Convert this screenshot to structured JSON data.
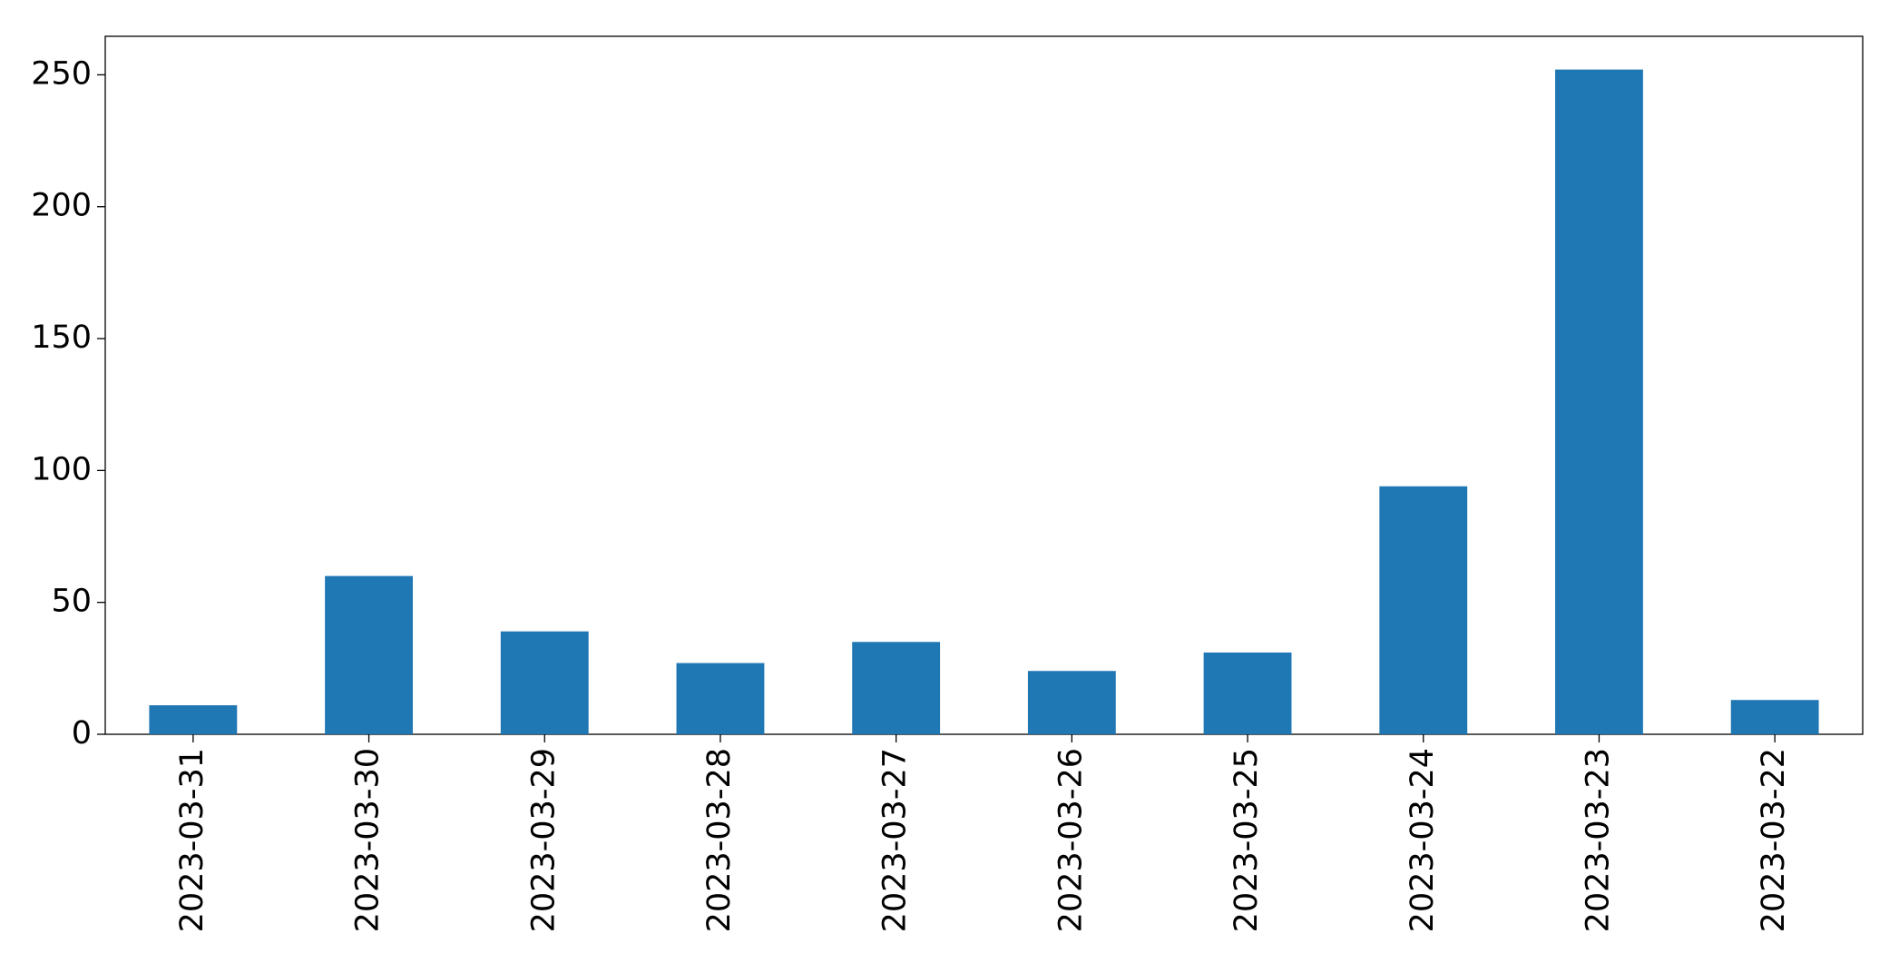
{
  "chart_data": {
    "type": "bar",
    "categories": [
      "2023-03-31",
      "2023-03-30",
      "2023-03-29",
      "2023-03-28",
      "2023-03-27",
      "2023-03-26",
      "2023-03-25",
      "2023-03-24",
      "2023-03-23",
      "2023-03-22"
    ],
    "values": [
      11,
      60,
      39,
      27,
      35,
      24,
      31,
      94,
      252,
      13
    ],
    "color": "#1f77b4",
    "ylim": [
      0,
      264.6
    ],
    "yticks": [
      0,
      50,
      100,
      150,
      200,
      250
    ],
    "grid": false
  }
}
